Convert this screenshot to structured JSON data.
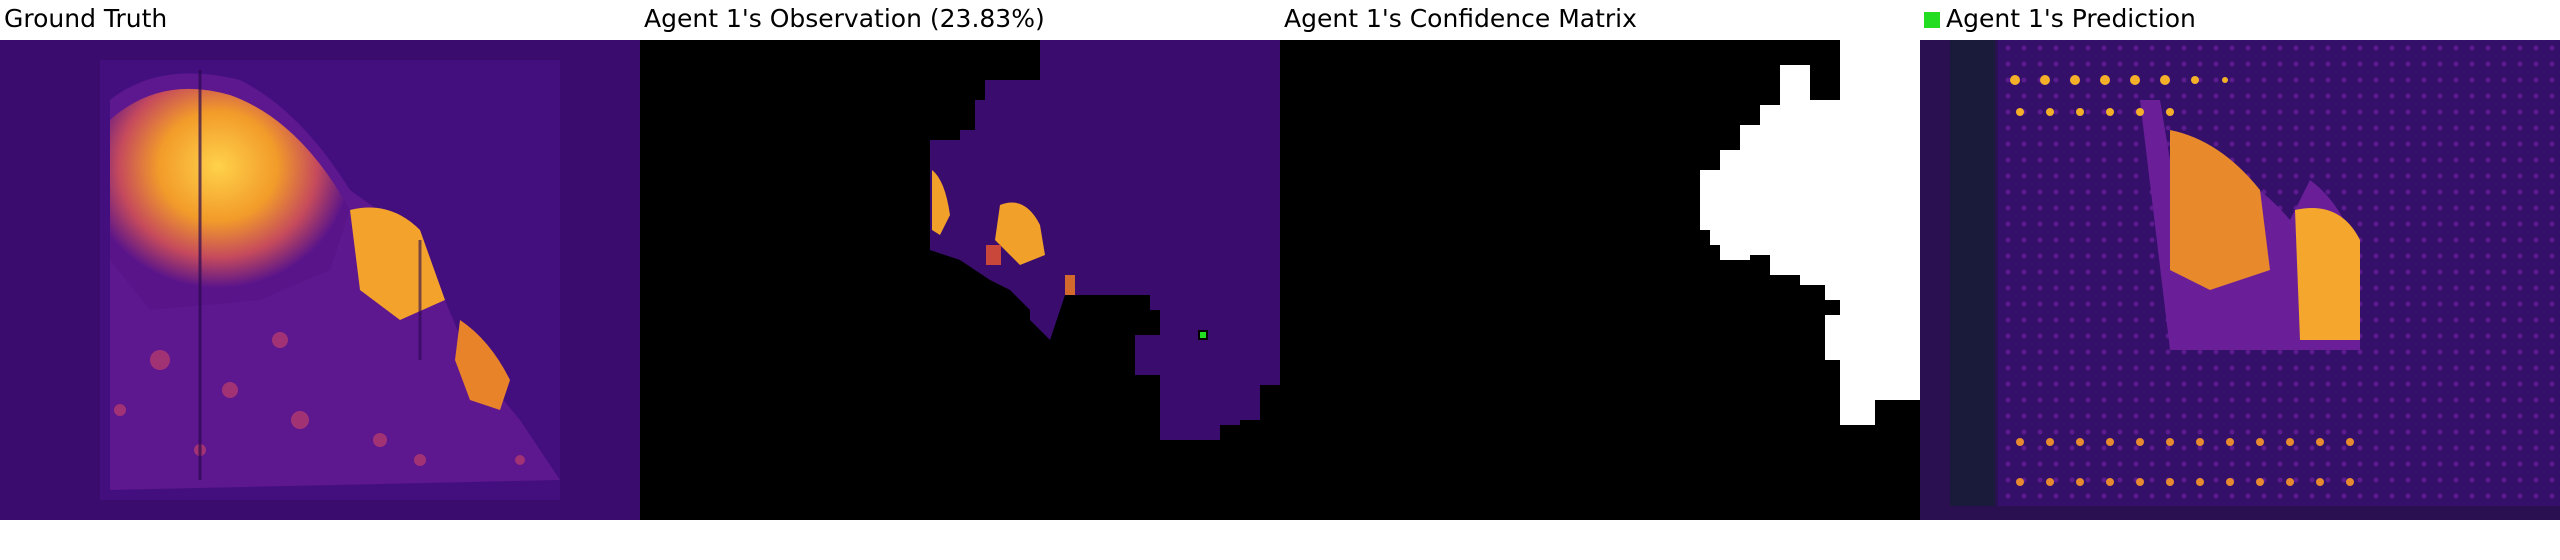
{
  "panels": [
    {
      "title": "Ground Truth"
    },
    {
      "title": "Agent 1's Observation (23.83%)"
    },
    {
      "title": "Agent 1's Confidence Matrix"
    },
    {
      "title": "Agent 1's Prediction",
      "legend_color": "#22dd22"
    }
  ],
  "colors": {
    "background_purple": "#3a0c6e",
    "hot_yellow": "#f8b12a",
    "hot_orange": "#e2701f",
    "mask_black": "#000000",
    "confidence_white": "#ffffff",
    "marker_green": "#22dd22"
  }
}
